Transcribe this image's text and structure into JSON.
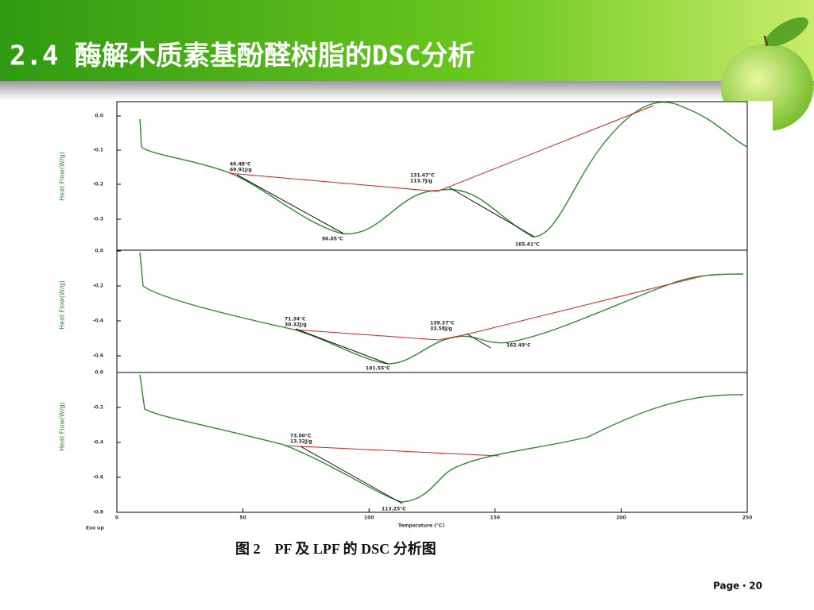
{
  "header": {
    "title": "2.4 酶解木质素基酚醛树脂的DSC分析"
  },
  "figure": {
    "panels": [
      {
        "y_axis_label": "Heat Flow(W/g)",
        "y_ticks": [
          "0.0",
          "-0.1",
          "-0.2",
          "-0.3"
        ],
        "annotations": [
          "49.48°C",
          "69.91J/g",
          "131.47°C",
          "113.7J/g",
          "90.05°C",
          "165.41°C"
        ]
      },
      {
        "y_axis_label": "Heat Flow(W/g)",
        "y_ticks": [
          "0.0",
          "-0.2",
          "-0.4",
          "-0.6"
        ],
        "annotations": [
          "71.34°C",
          "30.32J/g",
          "139.37°C",
          "33.58J/g",
          "101.55°C",
          "162.49°C"
        ]
      },
      {
        "y_axis_label": "Heat Flow(W/g)",
        "y_ticks": [
          "0.0",
          "-0.2",
          "-0.4",
          "-0.6",
          "-0.8"
        ],
        "annotations": [
          "73.00°C",
          "13.32J/g",
          "113.25°C"
        ]
      }
    ],
    "x_ticks": [
      "0",
      "50",
      "100",
      "150",
      "200",
      "250"
    ],
    "x_axis_label": "Temperature (°C)",
    "exo_label": "Exo up",
    "caption": "图 2　PF 及 LPF 的 DSC 分析图"
  },
  "footer": {
    "page": "Page・20"
  }
}
